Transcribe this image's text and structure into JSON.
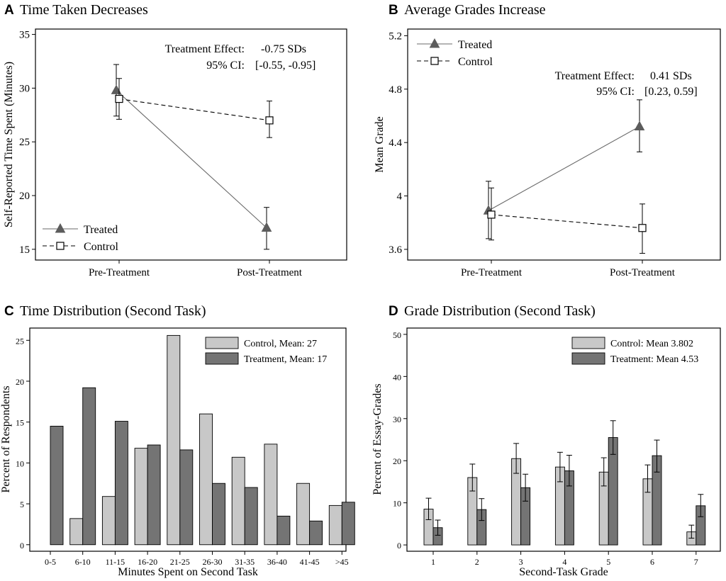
{
  "chart_data": [
    {
      "panel": "A",
      "type": "line",
      "title": "Time Taken Decreases",
      "ylabel": "Self-Reported Time Spent (Minutes)",
      "xlabel": "",
      "categories": [
        "Pre-Treatment",
        "Post-Treatment"
      ],
      "ylim": [
        14,
        35.5
      ],
      "yticks": [
        "15",
        "20",
        "25",
        "30",
        "35"
      ],
      "series": [
        {
          "name": "Treated",
          "marker": "triangle",
          "line": "solid",
          "values": [
            29.8,
            17.0
          ],
          "err_low": [
            27.4,
            15.0
          ],
          "err_high": [
            32.2,
            18.9
          ]
        },
        {
          "name": "Control",
          "marker": "square",
          "line": "dashed",
          "values": [
            29.0,
            27.0
          ],
          "err_low": [
            27.1,
            25.4
          ],
          "err_high": [
            30.9,
            28.8
          ]
        }
      ],
      "annotation": {
        "line1_label": "Treatment Effect:",
        "line1_value": "-0.75 SDs",
        "line2_label": "95% CI:",
        "line2_value": "[-0.55, -0.95]"
      },
      "legend_position": "bottom-left"
    },
    {
      "panel": "B",
      "type": "line",
      "title": "Average Grades Increase",
      "ylabel": "Mean Grade",
      "xlabel": "",
      "categories": [
        "Pre-Treatment",
        "Post-Treatment"
      ],
      "ylim": [
        3.52,
        5.25
      ],
      "yticks": [
        "3.6",
        "4",
        "4.4",
        "4.8",
        "5.2"
      ],
      "series": [
        {
          "name": "Treated",
          "marker": "triangle",
          "line": "solid",
          "values": [
            3.89,
            4.52
          ],
          "err_low": [
            3.68,
            4.33
          ],
          "err_high": [
            4.11,
            4.72
          ]
        },
        {
          "name": "Control",
          "marker": "square",
          "line": "dashed",
          "values": [
            3.86,
            3.76
          ],
          "err_low": [
            3.67,
            3.57
          ],
          "err_high": [
            4.06,
            3.94
          ]
        }
      ],
      "annotation": {
        "line1_label": "Treatment Effect:",
        "line1_value": "0.41 SDs",
        "line2_label": "95% CI:",
        "line2_value": "[0.23, 0.59]"
      },
      "legend_position": "top-left"
    },
    {
      "panel": "C",
      "type": "bar",
      "title": "Time Distribution (Second Task)",
      "ylabel": "Percent of Respondents",
      "xlabel": "Minutes Spent on Second Task",
      "categories": [
        "0-5",
        "6-10",
        "11-15",
        "16-20",
        "21-25",
        "26-30",
        "31-35",
        "36-40",
        "41-45",
        ">45"
      ],
      "ylim": [
        -0.8,
        26.5
      ],
      "yticks": [
        "0",
        "5",
        "10",
        "15",
        "20",
        "25"
      ],
      "series": [
        {
          "name": "Control, Mean: 27",
          "color": "#c8c8c8",
          "values": [
            0,
            3.2,
            5.9,
            11.8,
            25.6,
            16.0,
            10.7,
            12.3,
            7.5,
            4.8
          ]
        },
        {
          "name": "Treatment, Mean: 17",
          "color": "#747474",
          "values": [
            14.5,
            19.2,
            15.1,
            12.2,
            11.6,
            7.5,
            7.0,
            3.5,
            2.9,
            5.2
          ]
        }
      ],
      "legend_position": "top-right"
    },
    {
      "panel": "D",
      "type": "bar",
      "title": "Grade Distribution (Second Task)",
      "ylabel": "Percent of Essay-Grades",
      "xlabel": "Second-Task Grade",
      "categories": [
        "1",
        "2",
        "3",
        "4",
        "5",
        "6",
        "7"
      ],
      "ylim": [
        -1.5,
        51.5
      ],
      "yticks": [
        "0",
        "10",
        "20",
        "30",
        "40",
        "50"
      ],
      "series": [
        {
          "name": "Control: Mean 3.802",
          "color": "#c8c8c8",
          "values": [
            8.5,
            16.0,
            20.5,
            18.5,
            17.3,
            15.7,
            3.1
          ],
          "err_low": [
            6.0,
            12.8,
            17.0,
            15.0,
            14.0,
            12.5,
            1.6
          ],
          "err_high": [
            11.1,
            19.2,
            24.1,
            22.0,
            20.7,
            19.0,
            4.7
          ]
        },
        {
          "name": "Treatment: Mean 4.53",
          "color": "#747474",
          "values": [
            4.1,
            8.4,
            13.6,
            17.6,
            25.5,
            21.2,
            9.3
          ],
          "err_low": [
            2.3,
            5.8,
            10.4,
            14.0,
            21.5,
            17.3,
            6.7
          ],
          "err_high": [
            5.9,
            11.0,
            16.8,
            21.3,
            29.5,
            24.9,
            12.0
          ]
        }
      ],
      "legend_position": "top-right"
    }
  ]
}
